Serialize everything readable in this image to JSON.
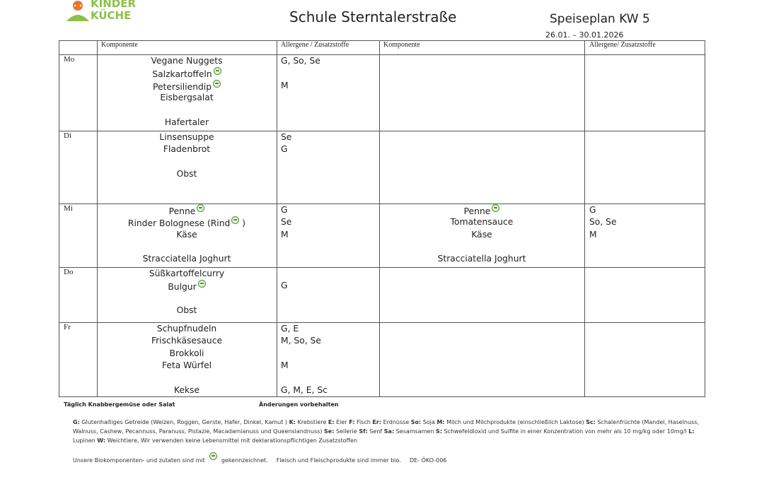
{
  "header": {
    "logo": [
      "KINDER",
      "KÜCHE"
    ],
    "school": "Schule Sterntalerstraße",
    "title": "Speiseplan KW 5",
    "dates": "26.01. – 30.01.2026"
  },
  "table": {
    "columns": [
      "Komponente",
      "Allergene / Zusatzstoffe",
      "Komponente",
      "Allergene/ Zusatzstoffe"
    ],
    "rows": [
      {
        "day": "Mo",
        "items": [
          "Vegane Nuggets",
          {
            "text": "Salzkartoffeln",
            "bio": true
          },
          {
            "text": "Petersiliendip",
            "bio": true
          },
          "Eisbergsalat",
          null,
          "Hafertaler"
        ],
        "allergens": [
          "G, So, Se",
          null,
          "M"
        ]
      },
      {
        "day": "Di",
        "items": [
          "Linsensuppe",
          "Fladenbrot",
          null,
          "Obst"
        ],
        "allergens": [
          "Se",
          "G"
        ]
      },
      {
        "day": "Mi",
        "items": [
          {
            "text": "Penne",
            "bio": true
          },
          {
            "text": "Rinder Bolognese (Rind",
            "bio": true,
            "after": ")"
          },
          "Käse",
          null,
          "Stracciatella Joghurt"
        ],
        "allergens": [
          "G",
          "Se",
          "M"
        ],
        "items2": [
          {
            "text": "Penne",
            "bio": true
          },
          "Tomatensauce",
          "Käse",
          null,
          "Stracciatella Joghurt"
        ],
        "allergens2": [
          "G",
          "So, Se",
          "M"
        ]
      },
      {
        "day": "Do",
        "items": [
          "Süßkartoffelcurry",
          {
            "text": "Bulgur",
            "bio": true
          },
          null,
          "Obst"
        ],
        "allergens": [
          null,
          "G"
        ]
      },
      {
        "day": "Fr",
        "items": [
          "Schupfnudeln",
          "Frischkäsesauce",
          "Brokkoli",
          "Feta Würfel",
          null,
          "Kekse"
        ],
        "allergens": [
          "G, E",
          "M, So, Se",
          null,
          "M",
          null,
          "G, M, E, Sc"
        ]
      }
    ]
  },
  "footer": {
    "daily": "Täglich Knabbergemüse oder Salat",
    "changes": "Änderungen vorbehalten",
    "legend": [
      {
        "code": "G:",
        "text": "Glutenhaltiges Getreide (Weizen, Roggen, Gerste, Hafer, Dinkel, Kamut )"
      },
      {
        "code": "K:",
        "text": "Krebstiere"
      },
      {
        "code": "E:",
        "text": "Eier"
      },
      {
        "code": "F:",
        "text": "Fisch"
      },
      {
        "code": "Er:",
        "text": "Erdnüsse"
      },
      {
        "code": "So:",
        "text": "Soja"
      },
      {
        "code": "M:",
        "text": "Milch und Milchprodukte (einschließlich Laktose)"
      },
      {
        "code": "Sc:",
        "text": "Schalenfrüchte (Mandel, Haselnuss, Walnuss, Cashew, Pecannuss, Paranuss, Pistazie, Macadamianuss und Queenslandnuss)"
      },
      {
        "code": "Se:",
        "text": "Sellerie"
      },
      {
        "code": "Sf:",
        "text": "Senf"
      },
      {
        "code": "Sa:",
        "text": "Sesamsamen"
      },
      {
        "code": "S:",
        "text": "Schwefeldioxid und Sulfite in einer Konzentration von mehr als 10 mg/kg oder 10mg/l"
      },
      {
        "code": "L:",
        "text": "Lupinen"
      },
      {
        "code": "W:",
        "text": "Weichtiere, Wir verwenden keine Lebensmittel mit deklarationspflichtigen Zusatzstoffen"
      }
    ],
    "bio_before": "Unsere Biokomponenten- und zutaten sind mit",
    "bio_after": "gekennzeichnet.",
    "meat": "Fleisch und Fleischprodukte sind immer bio.",
    "cert": "DE- ÖKO-006"
  }
}
